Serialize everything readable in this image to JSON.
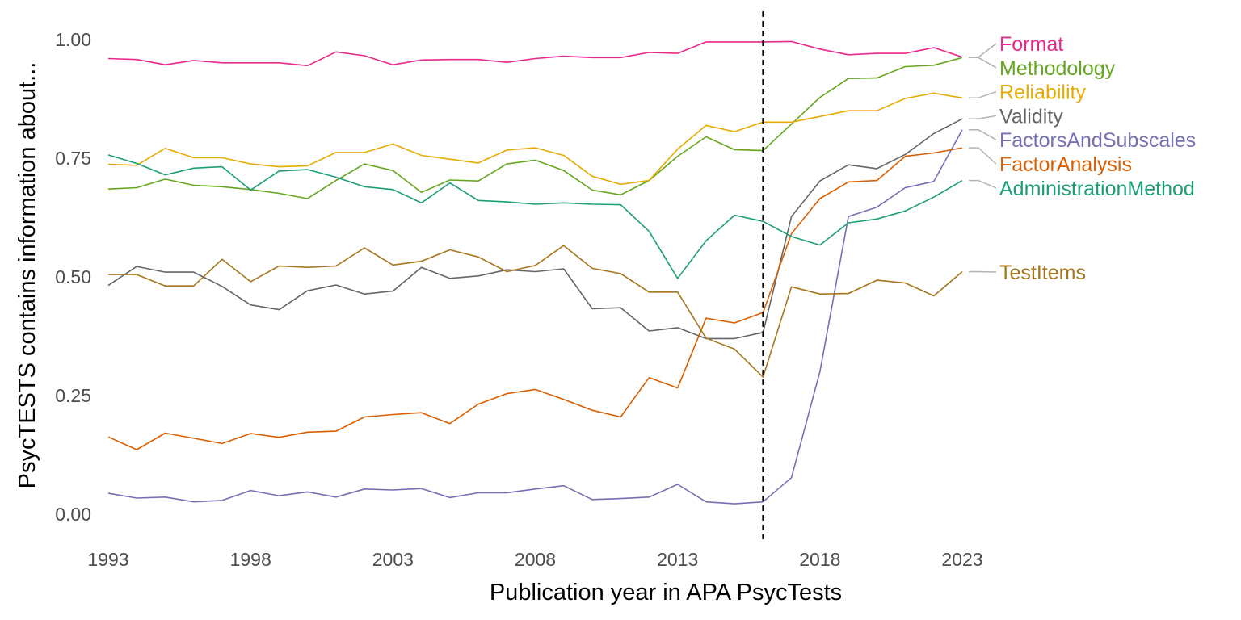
{
  "chart_data": {
    "type": "line",
    "xlabel": "Publication year in APA PsycTests",
    "ylabel": "PsycTESTS contains information about...",
    "xlim": [
      1993,
      2023
    ],
    "ylim": [
      0,
      1
    ],
    "x_ticks": [
      "1993",
      "1998",
      "2003",
      "2008",
      "2013",
      "2018",
      "2023"
    ],
    "y_ticks": [
      "0.00",
      "0.25",
      "0.50",
      "0.75",
      "1.00"
    ],
    "reference_line_x": 2016,
    "grid": false,
    "legend": "direct labels at right end of lines",
    "x": [
      1993,
      1994,
      1995,
      1996,
      1997,
      1998,
      1999,
      2000,
      2001,
      2002,
      2003,
      2004,
      2005,
      2006,
      2007,
      2008,
      2009,
      2010,
      2011,
      2012,
      2013,
      2014,
      2015,
      2016,
      2017,
      2018,
      2019,
      2020,
      2021,
      2022,
      2023
    ],
    "series": [
      {
        "name": "Format",
        "color": "#e7298a",
        "values": [
          0.96,
          0.958,
          0.947,
          0.956,
          0.951,
          0.951,
          0.951,
          0.945,
          0.974,
          0.966,
          0.947,
          0.957,
          0.958,
          0.958,
          0.952,
          0.96,
          0.965,
          0.962,
          0.962,
          0.973,
          0.971,
          0.995,
          0.995,
          0.995,
          0.996,
          0.98,
          0.968,
          0.971,
          0.971,
          0.983,
          0.963
        ]
      },
      {
        "name": "Methodology",
        "color": "#66a61e",
        "values": [
          0.685,
          0.688,
          0.706,
          0.693,
          0.69,
          0.684,
          0.676,
          0.665,
          0.703,
          0.738,
          0.724,
          0.678,
          0.704,
          0.702,
          0.738,
          0.746,
          0.724,
          0.683,
          0.673,
          0.703,
          0.754,
          0.795,
          0.768,
          0.766,
          0.822,
          0.878,
          0.918,
          0.919,
          0.943,
          0.946,
          0.962
        ]
      },
      {
        "name": "Reliability",
        "color": "#e6ab02",
        "values": [
          0.737,
          0.735,
          0.771,
          0.751,
          0.751,
          0.738,
          0.732,
          0.734,
          0.762,
          0.762,
          0.78,
          0.756,
          0.748,
          0.74,
          0.767,
          0.772,
          0.756,
          0.712,
          0.695,
          0.703,
          0.769,
          0.819,
          0.806,
          0.826,
          0.826,
          0.838,
          0.85,
          0.85,
          0.876,
          0.887,
          0.877
        ]
      },
      {
        "name": "Validity",
        "color": "#666666",
        "values": [
          0.482,
          0.522,
          0.51,
          0.51,
          0.48,
          0.441,
          0.431,
          0.471,
          0.483,
          0.464,
          0.47,
          0.52,
          0.497,
          0.502,
          0.515,
          0.511,
          0.517,
          0.433,
          0.435,
          0.386,
          0.393,
          0.37,
          0.37,
          0.383,
          0.627,
          0.702,
          0.736,
          0.728,
          0.758,
          0.802,
          0.833
        ]
      },
      {
        "name": "FactorsAndSubscales",
        "color": "#7570b3",
        "values": [
          0.044,
          0.034,
          0.036,
          0.026,
          0.029,
          0.05,
          0.039,
          0.047,
          0.036,
          0.053,
          0.051,
          0.054,
          0.035,
          0.045,
          0.045,
          0.053,
          0.06,
          0.031,
          0.033,
          0.036,
          0.063,
          0.026,
          0.022,
          0.026,
          0.077,
          0.3,
          0.627,
          0.647,
          0.688,
          0.701,
          0.81
        ]
      },
      {
        "name": "FactorAnalysis",
        "color": "#d95f02",
        "values": [
          0.163,
          0.136,
          0.171,
          0.16,
          0.149,
          0.17,
          0.162,
          0.173,
          0.175,
          0.205,
          0.21,
          0.214,
          0.191,
          0.232,
          0.254,
          0.263,
          0.242,
          0.219,
          0.205,
          0.288,
          0.266,
          0.413,
          0.403,
          0.425,
          0.591,
          0.665,
          0.7,
          0.703,
          0.754,
          0.761,
          0.772
        ]
      },
      {
        "name": "AdministrationMethod",
        "color": "#1b9e77",
        "values": [
          0.757,
          0.739,
          0.715,
          0.729,
          0.732,
          0.683,
          0.723,
          0.726,
          0.71,
          0.69,
          0.684,
          0.656,
          0.698,
          0.661,
          0.658,
          0.653,
          0.656,
          0.653,
          0.652,
          0.596,
          0.497,
          0.576,
          0.63,
          0.617,
          0.585,
          0.567,
          0.614,
          0.622,
          0.639,
          0.668,
          0.703
        ]
      },
      {
        "name": "TestItems",
        "color": "#a6761d",
        "values": [
          0.505,
          0.505,
          0.481,
          0.481,
          0.537,
          0.49,
          0.523,
          0.52,
          0.523,
          0.561,
          0.525,
          0.533,
          0.557,
          0.542,
          0.511,
          0.524,
          0.566,
          0.518,
          0.507,
          0.468,
          0.468,
          0.371,
          0.348,
          0.289,
          0.479,
          0.464,
          0.465,
          0.493,
          0.487,
          0.46,
          0.511
        ]
      }
    ]
  }
}
